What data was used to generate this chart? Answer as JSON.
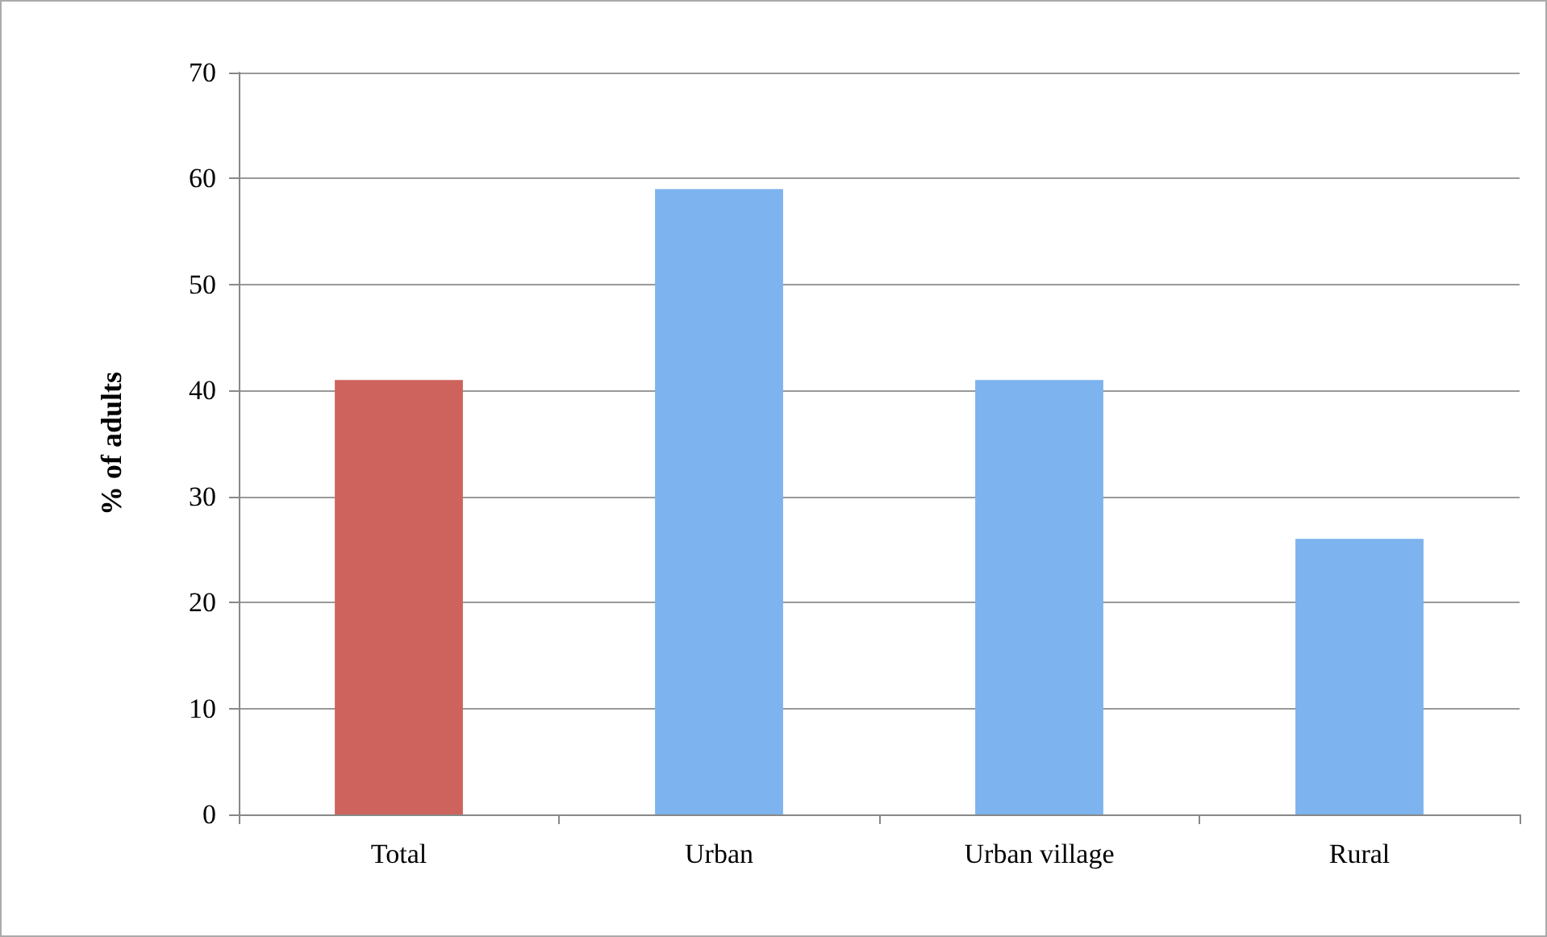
{
  "chart_data": {
    "type": "bar",
    "ylabel": "% of adults",
    "categories": [
      "Total",
      "Urban",
      "Urban village",
      "Rural"
    ],
    "values": [
      41,
      59,
      41,
      26
    ],
    "colors": [
      "#cd635c",
      "#7db3ee",
      "#7db3ee",
      "#7db3ee"
    ],
    "ylim": [
      0,
      70
    ],
    "yticks": [
      0,
      10,
      20,
      30,
      40,
      50,
      60,
      70
    ],
    "grid": "y"
  }
}
